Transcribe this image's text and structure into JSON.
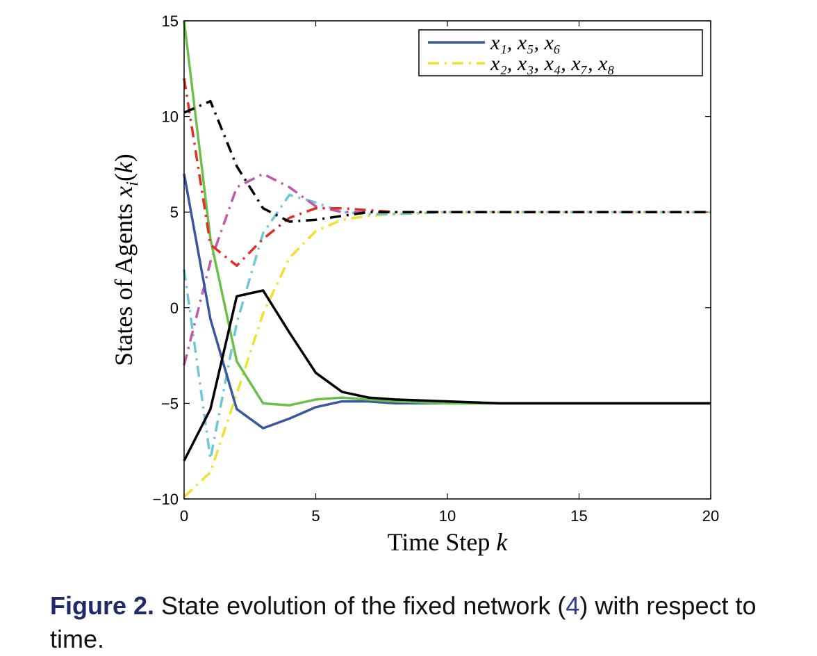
{
  "chart_data": {
    "type": "line",
    "xlabel": "Time Step k",
    "ylabel": "States of Agents x_i(k)",
    "xlim": [
      0,
      20
    ],
    "ylim": [
      -10,
      15
    ],
    "xticks": [
      0,
      5,
      10,
      15,
      20
    ],
    "yticks": [
      -10,
      -5,
      0,
      5,
      10,
      15
    ],
    "x": [
      0,
      1,
      2,
      3,
      4,
      5,
      6,
      7,
      8,
      9,
      10,
      11,
      12,
      13,
      14,
      15,
      16,
      17,
      18,
      19,
      20
    ],
    "legend_position": "top-right",
    "legend": [
      {
        "text": "x₁, x₅, x₆",
        "style": "solid",
        "color": "#3a56a0"
      },
      {
        "text": "x₂, x₃, x₄, x₇, x₈",
        "style": "dashdot",
        "color": "#f0e030"
      }
    ],
    "series": [
      {
        "style": "solid",
        "color": "#3a56a0",
        "values": [
          7.0,
          -0.6,
          -5.3,
          -6.3,
          -5.8,
          -5.2,
          -4.9,
          -4.9,
          -5.0,
          -5.0,
          -5.0,
          -5.0,
          -5.0,
          -5.0,
          -5.0,
          -5.0,
          -5.0,
          -5.0,
          -5.0,
          -5.0,
          -5.0
        ]
      },
      {
        "style": "solid",
        "color": "#6cbf4a",
        "values": [
          15.0,
          3.6,
          -2.8,
          -5.0,
          -5.1,
          -4.8,
          -4.7,
          -4.8,
          -4.9,
          -4.95,
          -5.0,
          -5.0,
          -5.0,
          -5.0,
          -5.0,
          -5.0,
          -5.0,
          -5.0,
          -5.0,
          -5.0,
          -5.0
        ]
      },
      {
        "style": "solid",
        "color": "#000000",
        "values": [
          -8.0,
          -5.3,
          0.6,
          0.9,
          -1.3,
          -3.4,
          -4.4,
          -4.7,
          -4.8,
          -4.85,
          -4.9,
          -4.95,
          -5.0,
          -5.0,
          -5.0,
          -5.0,
          -5.0,
          -5.0,
          -5.0,
          -5.0,
          -5.0
        ]
      },
      {
        "style": "dashdot",
        "color": "#f0e030",
        "values": [
          -9.9,
          -8.6,
          -4.5,
          -0.3,
          2.6,
          4.0,
          4.6,
          4.8,
          4.9,
          4.95,
          5.0,
          5.0,
          5.0,
          5.0,
          5.0,
          5.0,
          5.0,
          5.0,
          5.0,
          5.0,
          5.0
        ]
      },
      {
        "style": "dashdot",
        "color": "#6cc7d6",
        "values": [
          2.0,
          -7.9,
          -0.8,
          3.9,
          5.9,
          5.5,
          5.0,
          4.9,
          4.9,
          4.95,
          5.0,
          5.0,
          5.0,
          5.0,
          5.0,
          5.0,
          5.0,
          5.0,
          5.0,
          5.0,
          5.0
        ]
      },
      {
        "style": "dashdot",
        "color": "#c05aa8",
        "values": [
          -3.0,
          2.4,
          6.3,
          7.0,
          6.3,
          5.3,
          5.0,
          5.0,
          5.0,
          5.0,
          5.0,
          5.0,
          5.0,
          5.0,
          5.0,
          5.0,
          5.0,
          5.0,
          5.0,
          5.0,
          5.0
        ]
      },
      {
        "style": "dashdot",
        "color": "#e0302a",
        "values": [
          12.0,
          3.3,
          2.2,
          3.6,
          4.7,
          5.2,
          5.2,
          5.1,
          5.0,
          5.0,
          5.0,
          5.0,
          5.0,
          5.0,
          5.0,
          5.0,
          5.0,
          5.0,
          5.0,
          5.0,
          5.0
        ]
      },
      {
        "style": "dashdot",
        "color": "#000000",
        "values": [
          10.2,
          10.8,
          7.4,
          5.2,
          4.5,
          4.6,
          4.8,
          5.0,
          5.0,
          5.0,
          5.0,
          5.0,
          5.0,
          5.0,
          5.0,
          5.0,
          5.0,
          5.0,
          5.0,
          5.0,
          5.0
        ]
      }
    ]
  },
  "caption": {
    "label": "Figure 2.",
    "text_before": "State evolution of the fixed network (",
    "ref": "4",
    "text_after": ") with respect to time."
  }
}
